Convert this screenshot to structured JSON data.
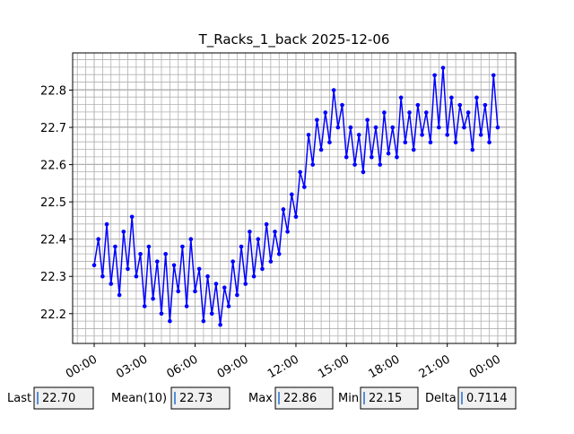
{
  "chart_data": {
    "type": "line",
    "title": "T_Racks_1_back 2025-12-06",
    "x": [
      0,
      0.25,
      0.5,
      0.75,
      1,
      1.25,
      1.5,
      1.75,
      2,
      2.25,
      2.5,
      2.75,
      3,
      3.25,
      3.5,
      3.75,
      4,
      4.25,
      4.5,
      4.75,
      5,
      5.25,
      5.5,
      5.75,
      6,
      6.25,
      6.5,
      6.75,
      7,
      7.25,
      7.5,
      7.75,
      8,
      8.25,
      8.5,
      8.75,
      9,
      9.25,
      9.5,
      9.75,
      10,
      10.25,
      10.5,
      10.75,
      11,
      11.25,
      11.5,
      11.75,
      12,
      12.25,
      12.5,
      12.75,
      13,
      13.25,
      13.5,
      13.75,
      14,
      14.25,
      14.5,
      14.75,
      15,
      15.25,
      15.5,
      15.75,
      16,
      16.25,
      16.5,
      16.75,
      17,
      17.25,
      17.5,
      17.75,
      18,
      18.25,
      18.5,
      18.75,
      19,
      19.25,
      19.5,
      19.75,
      20,
      20.25,
      20.5,
      20.75,
      21,
      21.25,
      21.5,
      21.75,
      22,
      22.25,
      22.5,
      22.75,
      23,
      23.25,
      23.5,
      23.75,
      24
    ],
    "series": [
      {
        "color": "#0000ff",
        "values": [
          22.33,
          22.4,
          22.3,
          22.44,
          22.28,
          22.38,
          22.25,
          22.42,
          22.32,
          22.46,
          22.3,
          22.36,
          22.22,
          22.38,
          22.24,
          22.34,
          22.2,
          22.36,
          22.18,
          22.33,
          22.26,
          22.38,
          22.22,
          22.4,
          22.26,
          22.32,
          22.18,
          22.3,
          22.2,
          22.28,
          22.17,
          22.27,
          22.22,
          22.34,
          22.25,
          22.38,
          22.28,
          22.42,
          22.3,
          22.4,
          22.32,
          22.44,
          22.34,
          22.42,
          22.36,
          22.48,
          22.42,
          22.52,
          22.46,
          22.58,
          22.54,
          22.68,
          22.6,
          22.72,
          22.64,
          22.74,
          22.66,
          22.8,
          22.7,
          22.76,
          22.62,
          22.7,
          22.6,
          22.68,
          22.58,
          22.72,
          22.62,
          22.7,
          22.6,
          22.74,
          22.63,
          22.7,
          22.62,
          22.78,
          22.66,
          22.74,
          22.64,
          22.76,
          22.68,
          22.74,
          22.66,
          22.84,
          22.7,
          22.86,
          22.68,
          22.78,
          22.66,
          22.76,
          22.7,
          22.74,
          22.64,
          22.78,
          22.68,
          22.76,
          22.66,
          22.84,
          22.7
        ]
      }
    ],
    "xlim": [
      -1.28,
      25.07
    ],
    "ylim": [
      22.12,
      22.9
    ],
    "xticks": [
      {
        "value": 0,
        "label": "00:00"
      },
      {
        "value": 3,
        "label": "03:00"
      },
      {
        "value": 6,
        "label": "06:00"
      },
      {
        "value": 9,
        "label": "09:00"
      },
      {
        "value": 12,
        "label": "12:00"
      },
      {
        "value": 15,
        "label": "15:00"
      },
      {
        "value": 18,
        "label": "18:00"
      },
      {
        "value": 21,
        "label": "21:00"
      },
      {
        "value": 24,
        "label": "00:00"
      }
    ],
    "yticks": [
      22.2,
      22.3,
      22.4,
      22.5,
      22.6,
      22.7,
      22.8
    ],
    "grid": true
  },
  "controls": [
    {
      "label": "Last",
      "value": "22.70"
    },
    {
      "label": "Mean(10)",
      "value": "22.73"
    },
    {
      "label": "Max",
      "value": "22.86"
    },
    {
      "label": "Min",
      "value": "22.15"
    },
    {
      "label": "Delta",
      "value": "0.7114"
    }
  ]
}
